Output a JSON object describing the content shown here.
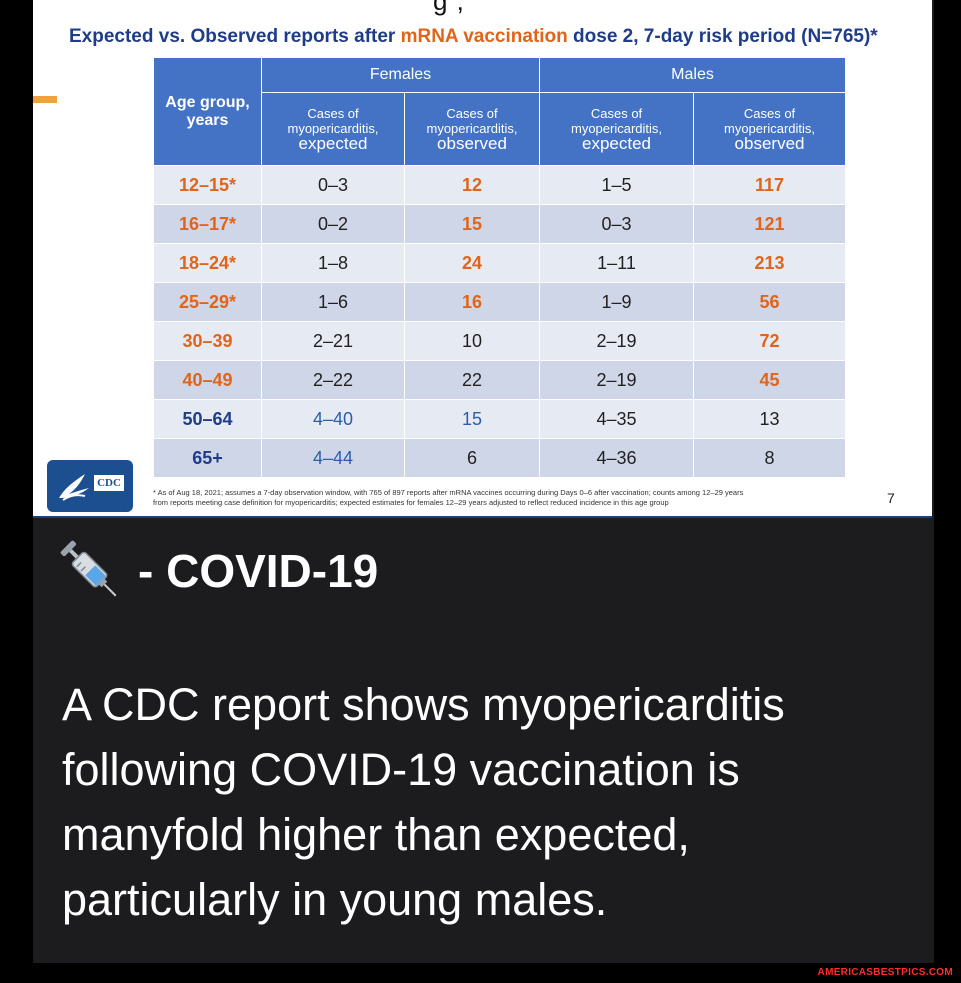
{
  "slide": {
    "title_prefix": "Expected vs. Observed reports after ",
    "title_highlight": "mRNA vaccination",
    "title_suffix": " dose 2, 7-day risk period (N=765)*",
    "page_number": "7",
    "footnote_line1": "* As of Aug 18, 2021; assumes a 7-day observation window, with 765 of 897 reports after mRNA vaccines occurring during Days 0–6 after vaccination; counts among 12–29 years",
    "footnote_line2": "from reports meeting case definition for myopericarditis; expected estimates for females 12–29 years adjusted to reflect reduced incidence in this age group",
    "logo_text": "CDC",
    "colors": {
      "header_blue": "#4472c4",
      "orange": "#e0651b",
      "navy": "#1f3c88"
    }
  },
  "table": {
    "age_header_line1": "Age group,",
    "age_header_line2": "years",
    "group_females": "Females",
    "group_males": "Males",
    "sub_line1": "Cases of",
    "sub_line2": "myopericarditis,",
    "sub_expected": "expected",
    "sub_observed": "observed",
    "rows": [
      {
        "age": "12–15*",
        "f_exp": "0–3",
        "f_obs": "12",
        "m_exp": "1–5",
        "m_obs": "117"
      },
      {
        "age": "16–17*",
        "f_exp": "0–2",
        "f_obs": "15",
        "m_exp": "0–3",
        "m_obs": "121"
      },
      {
        "age": "18–24*",
        "f_exp": "1–8",
        "f_obs": "24",
        "m_exp": "1–11",
        "m_obs": "213"
      },
      {
        "age": "25–29*",
        "f_exp": "1–6",
        "f_obs": "16",
        "m_exp": "1–9",
        "m_obs": "56"
      },
      {
        "age": "30–39",
        "f_exp": "2–21",
        "f_obs": "10",
        "m_exp": "2–19",
        "m_obs": "72"
      },
      {
        "age": "40–49",
        "f_exp": "2–22",
        "f_obs": "22",
        "m_exp": "2–19",
        "m_obs": "45"
      },
      {
        "age": "50–64",
        "f_exp": "4–40",
        "f_obs": "15",
        "m_exp": "4–35",
        "m_obs": "13"
      },
      {
        "age": "65+",
        "f_exp": "4–44",
        "f_obs": "6",
        "m_exp": "4–36",
        "m_obs": "8"
      }
    ]
  },
  "post": {
    "icon": "syringe-icon",
    "title": "- COVID-19",
    "body": "A CDC report shows myopericarditis following COVID-19 vaccination is manyfold higher than expected, particularly in young males."
  },
  "watermark": "AMERICASBESTPICS.COM"
}
